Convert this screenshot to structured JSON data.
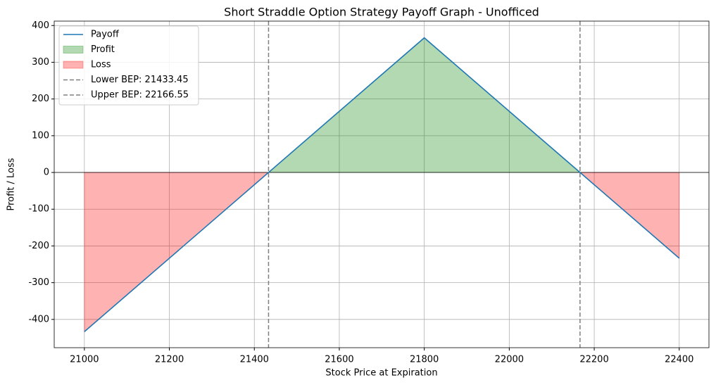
{
  "chart_data": {
    "type": "line",
    "title": "Short Straddle Option Strategy Payoff Graph - Unofficed",
    "x_label": "Stock Price at Expiration",
    "y_label": "Profit / Loss",
    "x": [
      21000,
      21433.45,
      21800,
      22166.55,
      22400
    ],
    "series": [
      {
        "name": "Payoff",
        "color": "#1f77b4",
        "values": [
          -433.45,
          0,
          366.55,
          0,
          -233.45
        ]
      }
    ],
    "fills": {
      "profit": {
        "name": "Profit",
        "color": "#008000"
      },
      "loss": {
        "name": "Loss",
        "color": "#ff0000"
      }
    },
    "reference_lines": [
      {
        "x": 21433.45,
        "label": "Lower BEP: 21433.45",
        "color": "#808080"
      },
      {
        "x": 22166.55,
        "label": "Upper BEP: 22166.55",
        "color": "#808080"
      }
    ],
    "baseline": 0,
    "xlim": [
      20929,
      22470
    ],
    "ylim": [
      -477,
      412
    ],
    "xticks": [
      21000,
      21200,
      21400,
      21600,
      21800,
      22000,
      22200,
      22400
    ],
    "yticks": [
      -400,
      -300,
      -200,
      -100,
      0,
      100,
      200,
      300,
      400
    ],
    "grid": true,
    "legend": "upper-left"
  }
}
